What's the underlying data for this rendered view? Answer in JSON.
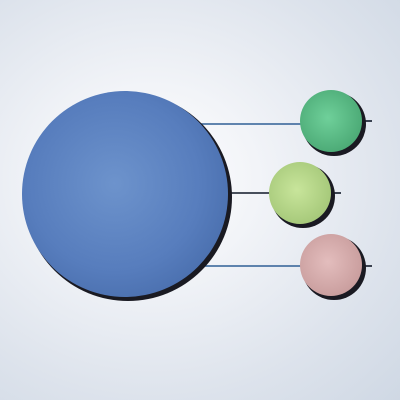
{
  "diagram": {
    "main_node": {
      "name": "main-circle",
      "fill": "#5a80bf",
      "fill_light": "#6a90c9",
      "fill_dark": "#4a6fae",
      "outline": "#2a2a30"
    },
    "branch_nodes": [
      {
        "name": "branch-node-1",
        "fill": "#5bbf88",
        "fill_light": "#6fd09a",
        "fill_dark": "#4aa874"
      },
      {
        "name": "branch-node-2",
        "fill": "#b8d98a",
        "fill_light": "#c8e59b",
        "fill_dark": "#a4c778"
      },
      {
        "name": "branch-node-3",
        "fill": "#d8aeae",
        "fill_light": "#e3bdbd",
        "fill_dark": "#c89c9c"
      }
    ],
    "connector_color": "#2f5f95",
    "connector_dark": "#101828"
  }
}
